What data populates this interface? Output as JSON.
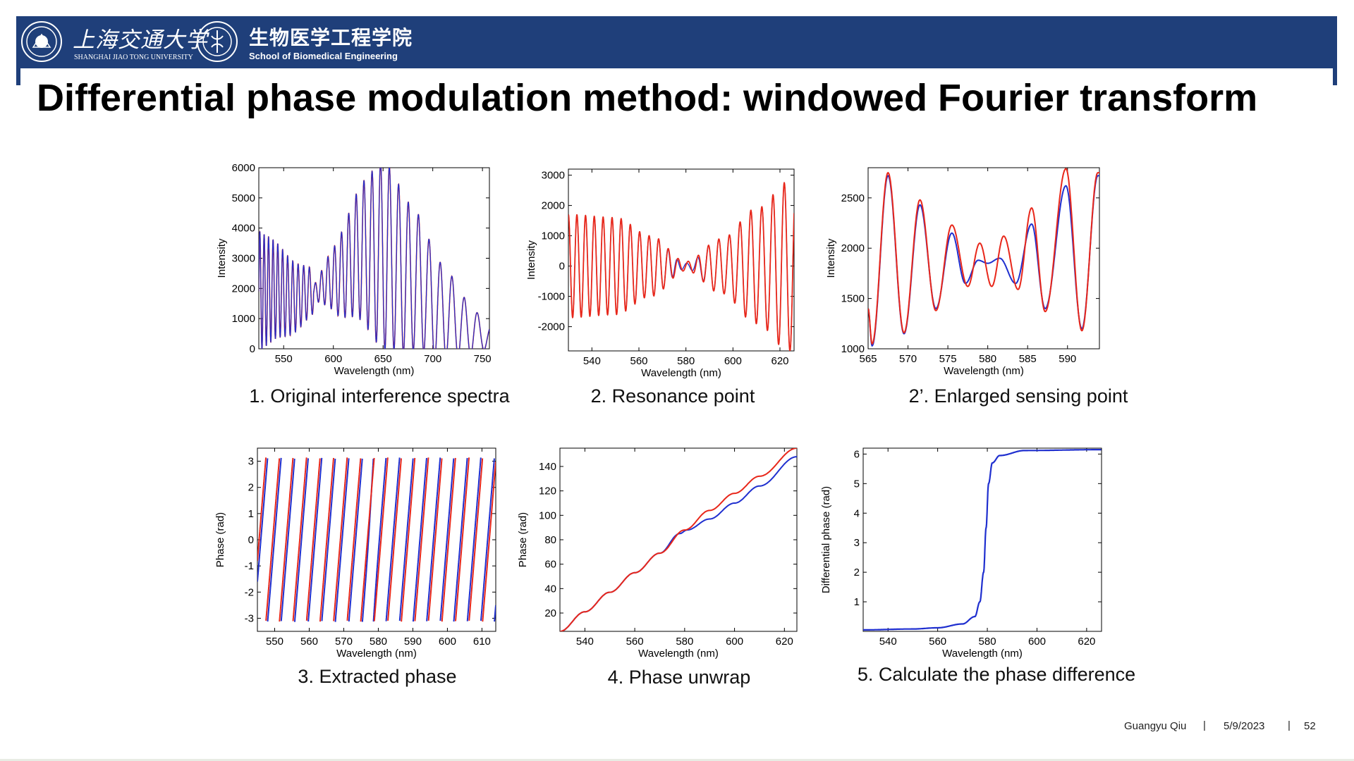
{
  "header": {
    "university_cn": "上海交通大学",
    "university_en": "SHANGHAI JIAO TONG UNIVERSITY",
    "school_cn": "生物医学工程学院",
    "school_en": "School of Biomedical Engineering",
    "brand_color": "#1f3f7a",
    "logos": [
      "university-seal-logo",
      "school-seal-logo"
    ]
  },
  "title": "Differential phase modulation method: windowed Fourier transform",
  "footer": {
    "author": "Guangyu Qiu",
    "date": "5/9/2023",
    "page": "52",
    "separator": "|"
  },
  "colors": {
    "series_red": "#e8271a",
    "series_blue": "#1f2fcf"
  },
  "chart_data": [
    {
      "id": "original-spectra",
      "type": "line",
      "caption": "1. Original interference spectra",
      "xlabel": "Wavelength (nm)",
      "ylabel": "Intensity",
      "xlim": [
        525,
        757
      ],
      "ylim": [
        0,
        6000
      ],
      "xticks": [
        550,
        600,
        650,
        700,
        750
      ],
      "yticks": [
        0,
        1000,
        2000,
        3000,
        4000,
        5000,
        6000
      ],
      "series": [
        {
          "color": "red",
          "description_points": [
            [
              525,
              1900
            ],
            [
              540,
              1950
            ],
            [
              560,
              1700
            ],
            [
              580,
              1900
            ],
            [
              600,
              2300
            ],
            [
              630,
              3200
            ],
            [
              650,
              3100
            ],
            [
              680,
              2300
            ],
            [
              710,
              1200
            ],
            [
              740,
              600
            ],
            [
              755,
              400
            ]
          ]
        },
        {
          "color": "blue",
          "description_points": [
            [
              525,
              1900
            ],
            [
              560,
              1700
            ],
            [
              580,
              1900
            ],
            [
              600,
              2300
            ],
            [
              650,
              3100
            ],
            [
              755,
              400
            ]
          ]
        }
      ]
    },
    {
      "id": "resonance-point",
      "type": "line",
      "caption": "2. Resonance point",
      "xlabel": "Wavelength (nm)",
      "ylabel": "Intensity",
      "xlim": [
        530,
        626
      ],
      "ylim": [
        -2800,
        3200
      ],
      "xticks": [
        540,
        560,
        580,
        600,
        620
      ],
      "yticks": [
        -2000,
        -1000,
        0,
        1000,
        2000,
        3000
      ],
      "series": [
        {
          "color": "red",
          "envelope": [
            [
              530,
              1700
            ],
            [
              550,
              1600
            ],
            [
              565,
              1000
            ],
            [
              580,
              150
            ],
            [
              595,
              900
            ],
            [
              610,
              1900
            ],
            [
              624,
              2800
            ]
          ]
        },
        {
          "color": "blue",
          "envelope": [
            [
              530,
              1700
            ],
            [
              550,
              1600
            ],
            [
              565,
              1000
            ],
            [
              580,
              150
            ],
            [
              595,
              900
            ],
            [
              610,
              1900
            ],
            [
              624,
              2800
            ]
          ]
        }
      ]
    },
    {
      "id": "enlarged-sensing-point",
      "type": "line",
      "caption": "2’. Enlarged sensing point",
      "xlabel": "Wavelength (nm)",
      "ylabel": "Intensity",
      "xlim": [
        565,
        594
      ],
      "ylim": [
        1000,
        2800
      ],
      "xticks": [
        565,
        570,
        575,
        580,
        585,
        590
      ],
      "yticks": [
        1000,
        1500,
        2000,
        2500
      ],
      "series": [
        {
          "color": "red",
          "points": [
            [
              565,
              1400
            ],
            [
              565.5,
              1050
            ],
            [
              567.5,
              2750
            ],
            [
              569.5,
              1160
            ],
            [
              571.5,
              2480
            ],
            [
              573.5,
              1380
            ],
            [
              575.5,
              2230
            ],
            [
              577.5,
              1620
            ],
            [
              579,
              2050
            ],
            [
              580.5,
              1620
            ],
            [
              582,
              2120
            ],
            [
              583.8,
              1590
            ],
            [
              585.5,
              2400
            ],
            [
              587.2,
              1370
            ],
            [
              589.8,
              2790
            ],
            [
              591.8,
              1180
            ],
            [
              593.8,
              2750
            ]
          ]
        },
        {
          "color": "blue",
          "points": [
            [
              565,
              1400
            ],
            [
              565.5,
              1030
            ],
            [
              567.5,
              2720
            ],
            [
              569.5,
              1150
            ],
            [
              571.5,
              2430
            ],
            [
              573.5,
              1400
            ],
            [
              575.5,
              2150
            ],
            [
              577.2,
              1650
            ],
            [
              578.8,
              1880
            ],
            [
              580,
              1850
            ],
            [
              581.5,
              1900
            ],
            [
              583.5,
              1650
            ],
            [
              585.5,
              2240
            ],
            [
              587.2,
              1400
            ],
            [
              589.8,
              2620
            ],
            [
              591.8,
              1200
            ],
            [
              593.8,
              2720
            ]
          ]
        }
      ]
    },
    {
      "id": "extracted-phase",
      "type": "line",
      "caption": "3. Extracted phase",
      "xlabel": "Wavelength (nm)",
      "ylabel": "Phase (rad)",
      "xlim": [
        545,
        614
      ],
      "ylim": [
        -3.5,
        3.5
      ],
      "xticks": [
        550,
        560,
        570,
        580,
        590,
        600,
        610
      ],
      "yticks": [
        -3,
        -2,
        -1,
        0,
        1,
        2,
        3
      ],
      "series": [
        {
          "color": "red",
          "description": "sawtooth wrapped phase between -pi and pi, period about 3.9 nm"
        },
        {
          "color": "blue",
          "description": "sawtooth wrapped phase with a phase slip near 578 nm"
        }
      ]
    },
    {
      "id": "phase-unwrap",
      "type": "line",
      "caption": "4. Phase unwrap",
      "xlabel": "Wavelength (nm)",
      "ylabel": "Phase (rad)",
      "xlim": [
        530,
        625
      ],
      "ylim": [
        5,
        155
      ],
      "xticks": [
        540,
        560,
        580,
        600,
        620
      ],
      "yticks": [
        20,
        40,
        60,
        80,
        100,
        120,
        140
      ],
      "series": [
        {
          "color": "red",
          "points": [
            [
              530,
              5
            ],
            [
              540,
              21
            ],
            [
              550,
              37
            ],
            [
              560,
              53
            ],
            [
              570,
              69
            ],
            [
              580,
              88
            ],
            [
              590,
              104
            ],
            [
              600,
              118
            ],
            [
              610,
              132
            ],
            [
              625,
              155
            ]
          ]
        },
        {
          "color": "blue",
          "points": [
            [
              530,
              5
            ],
            [
              540,
              21
            ],
            [
              550,
              37
            ],
            [
              560,
              53
            ],
            [
              570,
              69
            ],
            [
              578,
              85
            ],
            [
              581,
              88
            ],
            [
              590,
              97
            ],
            [
              600,
              110
            ],
            [
              610,
              124
            ],
            [
              625,
              148
            ]
          ]
        }
      ]
    },
    {
      "id": "phase-difference",
      "type": "line",
      "caption": "5. Calculate the phase difference",
      "xlabel": "Wavelength (nm)",
      "ylabel": "Differential phase (rad)",
      "xlim": [
        530,
        626
      ],
      "ylim": [
        0,
        6.2
      ],
      "xticks": [
        540,
        560,
        580,
        600,
        620
      ],
      "yticks": [
        1,
        2,
        3,
        4,
        5,
        6
      ],
      "series": [
        {
          "color": "blue",
          "points": [
            [
              530,
              0.05
            ],
            [
              550,
              0.08
            ],
            [
              560,
              0.12
            ],
            [
              570,
              0.25
            ],
            [
              575,
              0.5
            ],
            [
              577,
              1.0
            ],
            [
              578.5,
              2.0
            ],
            [
              579.5,
              3.5
            ],
            [
              580.5,
              5.0
            ],
            [
              582,
              5.7
            ],
            [
              585,
              5.95
            ],
            [
              595,
              6.12
            ],
            [
              626,
              6.15
            ]
          ]
        }
      ]
    }
  ]
}
